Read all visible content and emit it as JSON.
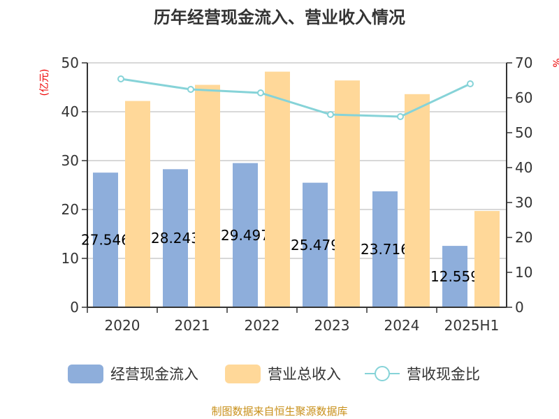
{
  "chart_data": {
    "type": "bar",
    "title": "历年经营现金流入、营业收入情况",
    "categories": [
      "2020",
      "2021",
      "2022",
      "2023",
      "2024",
      "2025H1"
    ],
    "left_axis": {
      "label": "(亿元)",
      "ylim": [
        0,
        50
      ],
      "ticks": [
        "0",
        "10",
        "20",
        "30",
        "40",
        "50"
      ]
    },
    "right_axis": {
      "label": "%",
      "ylim": [
        0,
        70
      ],
      "ticks": [
        "0",
        "10",
        "20",
        "30",
        "40",
        "50",
        "60",
        "70"
      ]
    },
    "series": [
      {
        "name": "经营现金流入",
        "type": "bar",
        "color": "#8eaedb",
        "values": [
          27.546,
          28.243,
          29.497,
          25.479,
          23.716,
          12.559
        ],
        "data_labels": [
          "27.546",
          "28.243",
          "29.497",
          "25.479",
          "23.716",
          "12.559"
        ]
      },
      {
        "name": "营业总收入",
        "type": "bar",
        "color": "#ffd899",
        "values": [
          42.2,
          45.5,
          48.2,
          46.4,
          43.6,
          19.7
        ]
      },
      {
        "name": "营收现金比",
        "type": "line",
        "axis": "right",
        "color": "#86d3d8",
        "values": [
          65.4,
          62.4,
          61.4,
          55.2,
          54.6,
          64.0
        ]
      }
    ],
    "grid": true,
    "legend_position": "bottom"
  },
  "footer": {
    "source": "制图数据来自恒生聚源数据库"
  }
}
